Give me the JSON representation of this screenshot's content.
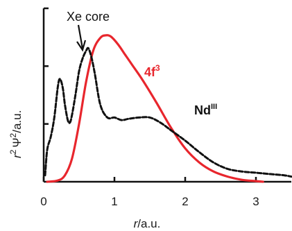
{
  "chart_data": {
    "type": "line",
    "title": "",
    "xlabel_italic": "r",
    "xlabel_rest": "/a.u.",
    "ylabel_italic": "r",
    "ylabel_sup": "2",
    "ylabel_psi": "Ψ",
    "ylabel_sup2": "2",
    "ylabel_rest": "/a.u.",
    "xlim": [
      0,
      3.5
    ],
    "ylim": [
      0,
      1.35
    ],
    "x_ticks": [
      0,
      1,
      2,
      3
    ],
    "x_tick_labels": [
      "0",
      "1",
      "2",
      "3"
    ],
    "y_ticks": [
      0.45,
      0.9
    ],
    "grid": false,
    "legend": "none",
    "series": [
      {
        "name": "4f3",
        "name_base": "4f",
        "name_sup": "3",
        "color": "#e8262d",
        "style": "solid",
        "x": [
          0.05,
          0.2,
          0.3,
          0.4,
          0.5,
          0.6,
          0.7,
          0.8,
          0.88,
          0.95,
          1.05,
          1.15,
          1.25,
          1.4,
          1.6,
          1.8,
          2.0,
          2.2,
          2.4,
          2.6,
          2.8,
          3.0,
          3.1
        ],
        "y": [
          0.0,
          0.01,
          0.05,
          0.18,
          0.45,
          0.78,
          1.02,
          1.12,
          1.14,
          1.13,
          1.07,
          0.99,
          0.91,
          0.79,
          0.61,
          0.42,
          0.26,
          0.15,
          0.08,
          0.04,
          0.015,
          0.005,
          0.0
        ]
      },
      {
        "name": "NdIII",
        "name_base": "Nd",
        "name_sup": "III",
        "color": "#111111",
        "style": "dashed",
        "x": [
          0.02,
          0.05,
          0.1,
          0.15,
          0.2,
          0.23,
          0.27,
          0.3,
          0.34,
          0.37,
          0.4,
          0.45,
          0.5,
          0.55,
          0.6,
          0.63,
          0.67,
          0.72,
          0.8,
          0.9,
          1.0,
          1.1,
          1.2,
          1.35,
          1.5,
          1.65,
          1.8,
          2.0,
          2.2,
          2.4,
          2.6,
          2.8,
          3.0,
          3.2,
          3.4,
          3.5
        ],
        "y": [
          0.05,
          0.25,
          0.35,
          0.5,
          0.74,
          0.8,
          0.73,
          0.6,
          0.48,
          0.46,
          0.52,
          0.68,
          0.86,
          0.96,
          1.02,
          1.04,
          0.98,
          0.85,
          0.6,
          0.5,
          0.5,
          0.48,
          0.49,
          0.5,
          0.5,
          0.46,
          0.4,
          0.32,
          0.23,
          0.15,
          0.1,
          0.08,
          0.07,
          0.06,
          0.05,
          0.04
        ]
      }
    ],
    "annotations": {
      "xe_core": "Xe core",
      "nd_base": "Nd",
      "nd_sup": "III",
      "f_base": "4f",
      "f_sup": "3"
    },
    "colors": {
      "red": "#e8262d",
      "black": "#111111"
    }
  }
}
